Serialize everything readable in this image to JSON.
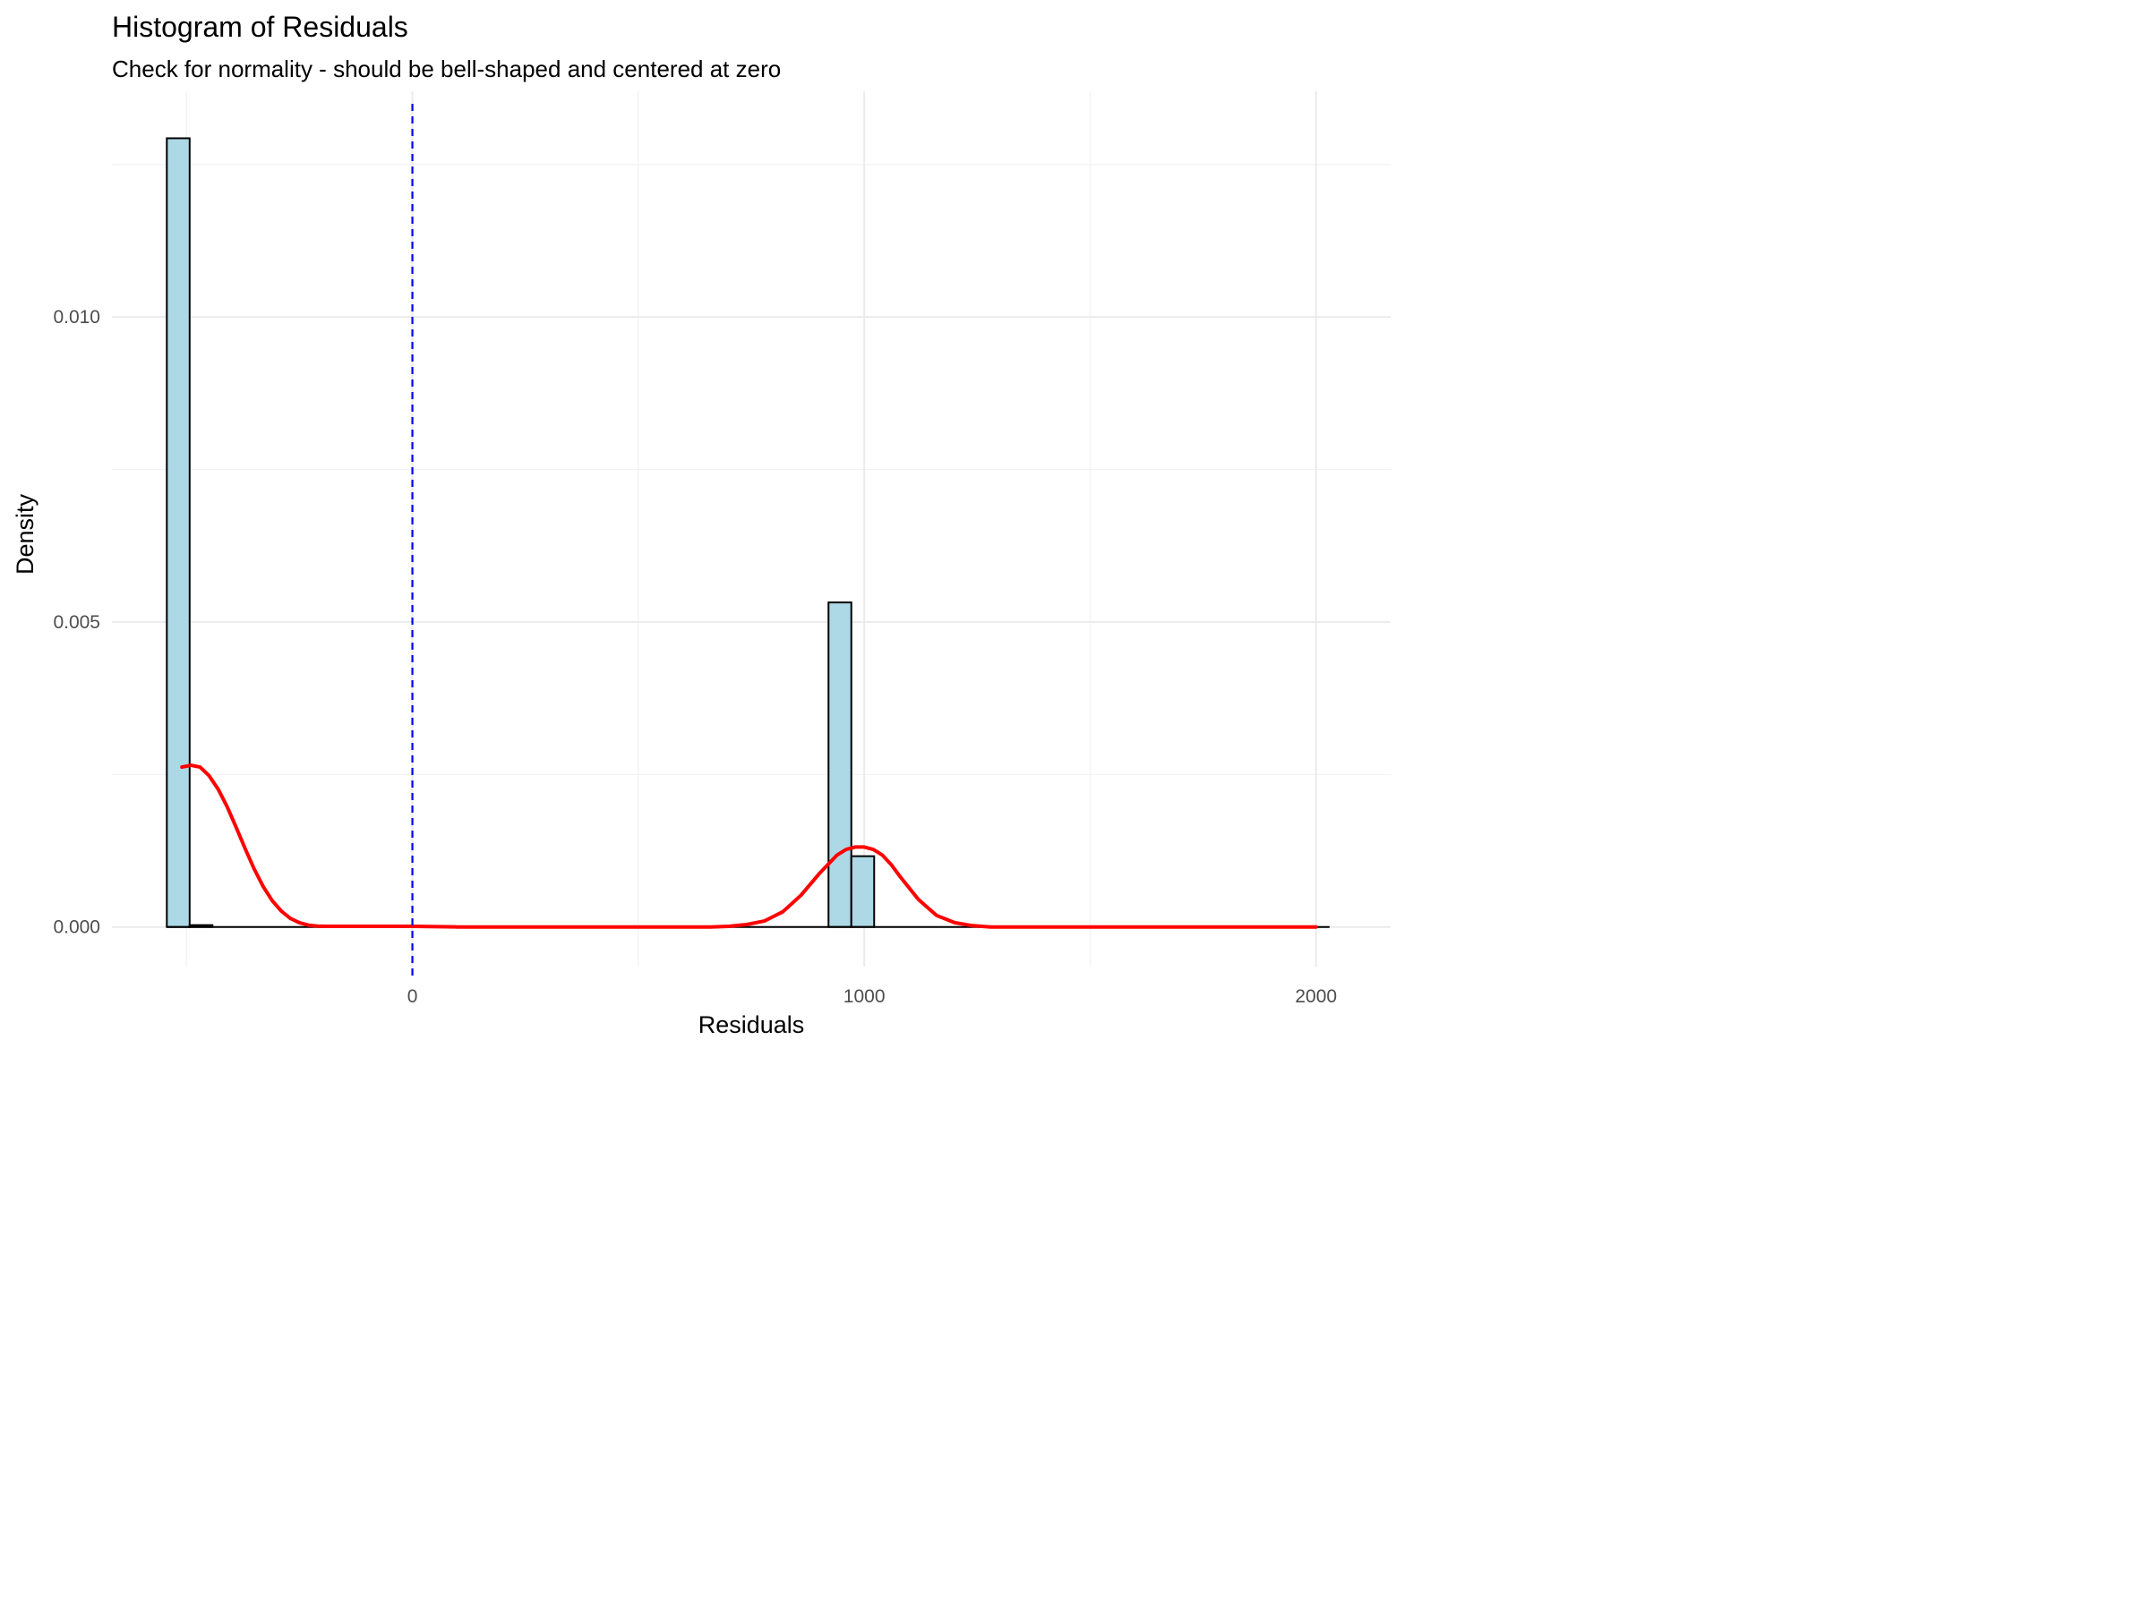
{
  "chart_data": {
    "type": "bar",
    "title": "Histogram of Residuals",
    "subtitle": "Check for normality - should be bell-shaped and centered at zero",
    "xlabel": "Residuals",
    "ylabel": "Density",
    "xlim": [
      -665,
      2165
    ],
    "ylim": [
      -0.00065,
      0.0137
    ],
    "x_ticks": [
      0,
      1000,
      2000
    ],
    "x_tick_labels": [
      "0",
      "1000",
      "2000"
    ],
    "x_minor_ticks": [
      -500,
      500,
      1500
    ],
    "y_ticks": [
      0.0,
      0.005,
      0.01
    ],
    "y_tick_labels": [
      "0.000",
      "0.005",
      "0.010"
    ],
    "y_minor_ticks": [
      0.0025,
      0.0075,
      0.0125
    ],
    "grid": true,
    "bin_width": 50.5,
    "histogram": {
      "bin_start": -543.5,
      "densities": [
        0.01293,
        3e-05,
        0,
        0,
        0,
        0,
        0,
        0,
        0,
        0,
        0,
        0,
        0,
        0,
        0,
        0,
        0,
        0,
        0,
        0,
        0,
        0,
        0,
        0,
        0,
        0,
        0,
        0,
        0,
        0.00532,
        0.00116,
        0,
        0,
        0,
        0,
        0,
        0,
        0,
        0,
        0,
        0,
        0,
        0,
        0,
        0,
        0,
        0,
        0,
        0,
        0,
        0,
        0,
        0,
        0,
        0,
        0,
        0,
        0,
        0,
        0
      ],
      "x_end": 2030,
      "fill": "#add8e6",
      "outline": "#000000"
    },
    "density_curve": {
      "color": "#ff0000",
      "x": [
        -510,
        -490,
        -470,
        -450,
        -430,
        -410,
        -390,
        -370,
        -350,
        -330,
        -310,
        -290,
        -270,
        -250,
        -230,
        -210,
        -190,
        -170,
        -150,
        -100,
        -50,
        0,
        100,
        200,
        300,
        400,
        500,
        600,
        660,
        700,
        740,
        780,
        820,
        860,
        900,
        940,
        960,
        980,
        1000,
        1020,
        1040,
        1060,
        1080,
        1120,
        1160,
        1200,
        1240,
        1280,
        1320,
        1400,
        1500,
        1600,
        1700,
        1800,
        1900,
        2000
      ],
      "y": [
        0.00262,
        0.00265,
        0.00262,
        0.00248,
        0.00226,
        0.00197,
        0.00163,
        0.00128,
        0.00095,
        0.00066,
        0.00043,
        0.00026,
        0.00014,
        7e-05,
        3e-05,
        1.5e-05,
        1e-05,
        1e-05,
        1e-05,
        1e-05,
        1e-05,
        1e-05,
        0.0,
        0.0,
        0.0,
        0.0,
        0.0,
        0.0,
        0.0,
        1e-05,
        4e-05,
        0.0001,
        0.00025,
        0.00052,
        0.00087,
        0.00118,
        0.00127,
        0.00131,
        0.00131,
        0.00127,
        0.00118,
        0.00102,
        0.00082,
        0.00045,
        0.00019,
        7e-05,
        2e-05,
        0.0,
        0.0,
        0.0,
        0.0,
        0.0,
        0.0,
        0.0,
        0.0,
        0.0
      ]
    },
    "reference_line": {
      "x": 0,
      "color": "#0000ff",
      "style": "dashed"
    }
  }
}
